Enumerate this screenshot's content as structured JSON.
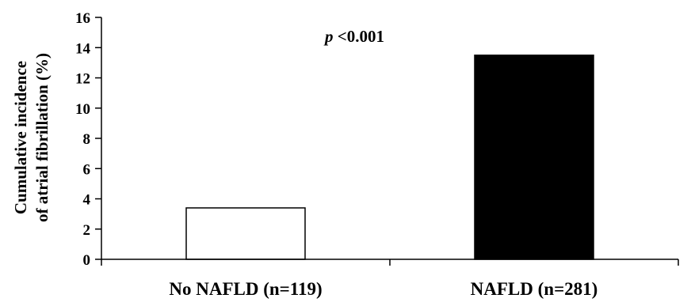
{
  "chart_data": {
    "type": "bar",
    "categories": [
      "No NAFLD (n=119)",
      "NAFLD (n=281)"
    ],
    "values": [
      3.4,
      13.5
    ],
    "bar_colors": [
      "#ffffff",
      "#000000"
    ],
    "ylabel_lines": [
      "Cumulative incidence",
      "of atrial fibrillation (%)"
    ],
    "ylim": [
      0,
      16
    ],
    "yticks": [
      0,
      2,
      4,
      6,
      8,
      10,
      12,
      14,
      16
    ],
    "annotation": {
      "italic": "p",
      "rest": " <0.001"
    },
    "grid": false,
    "legend": "none"
  }
}
